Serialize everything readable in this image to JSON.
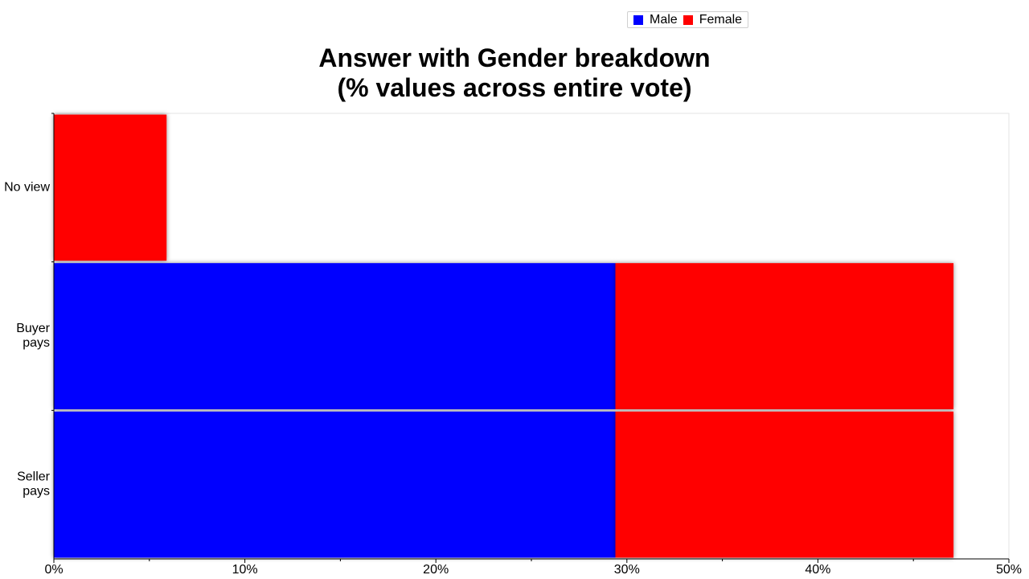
{
  "chart_data": {
    "type": "bar",
    "orientation": "horizontal",
    "stacked": true,
    "title": "Answer with Gender breakdown",
    "subtitle": "(% values across entire vote)",
    "categories": [
      "No view",
      "Buyer pays",
      "Seller pays"
    ],
    "series": [
      {
        "name": "Male",
        "color": "#0000ff",
        "values": [
          0,
          29.4,
          29.4
        ]
      },
      {
        "name": "Female",
        "color": "#ff0000",
        "values": [
          5.9,
          17.7,
          17.7
        ]
      }
    ],
    "xlim": [
      0,
      50
    ],
    "xticks": [
      "0%",
      "10%",
      "20%",
      "30%",
      "40%",
      "50%"
    ],
    "xlabel": "",
    "ylabel": "",
    "legend_position": "top-right",
    "grid": false
  }
}
